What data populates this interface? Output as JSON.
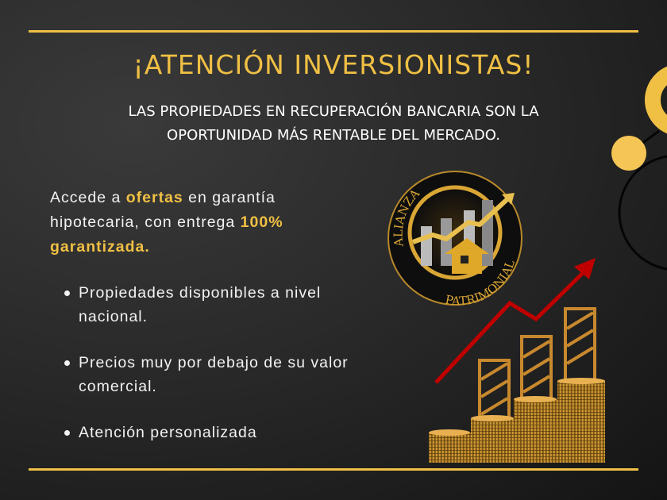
{
  "header": {
    "title": "¡ATENCIÓN INVERSIONISTAS!",
    "subtitle_line1": "LAS PROPIEDADES EN RECUPERACIÓN BANCARIA SON LA",
    "subtitle_line2": "OPORTUNIDAD MÁS RENTABLE DEL MERCADO."
  },
  "intro": {
    "part1": "Accede a ",
    "highlight1": "ofertas",
    "part2": " en garantía hipotecaria, con entrega ",
    "highlight2": "100% garantizada."
  },
  "bullets": [
    "Propiedades disponibles a nivel nacional.",
    "Precios muy por debajo de su valor comercial.",
    "Atención personalizada"
  ],
  "logo": {
    "top_text": "ALIANZA",
    "bottom_text": "PATRIMONIAL"
  },
  "colors": {
    "accent": "#f0c044",
    "background": "#262626",
    "arrow": "#c00000"
  },
  "icons": [
    "house-icon",
    "trend-arrow-icon",
    "coin-stack-icon"
  ]
}
